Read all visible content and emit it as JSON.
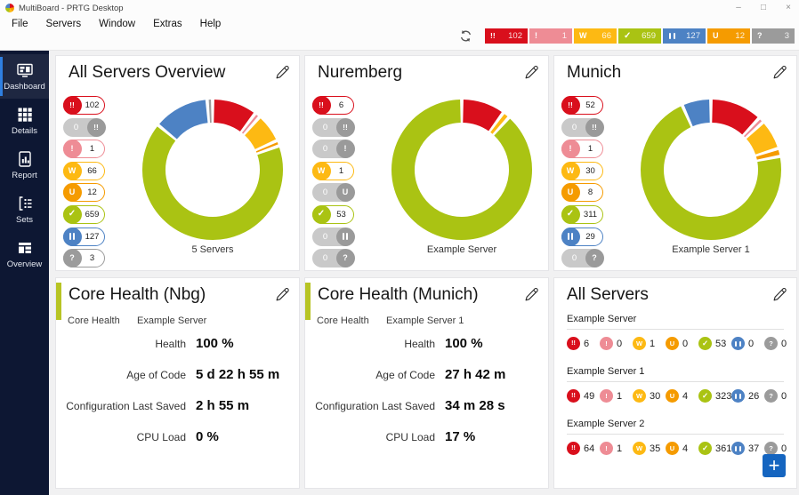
{
  "window": {
    "title": "MultiBoard - PRTG Desktop",
    "controls": [
      {
        "name": "minimize",
        "glyph": "–"
      },
      {
        "name": "maximize",
        "glyph": "□"
      },
      {
        "name": "close",
        "glyph": "×"
      }
    ]
  },
  "menu": {
    "items": [
      "File",
      "Servers",
      "Window",
      "Extras",
      "Help"
    ]
  },
  "colors": {
    "down": "#d90f1c",
    "down_ack": "#9a9a9a",
    "down_part": "#ee8c95",
    "warning": "#fdb913",
    "unusual": "#f59b00",
    "up": "#aac313",
    "paused": "#4d82c4",
    "unknown": "#9b9b9b",
    "zero_pill_bg": "#c9c9c9",
    "zero_pill_knob": "#9a9a9a",
    "add_button": "#1565c0",
    "core_health_stripe": "#b7c424",
    "active_nav_accent": "#2f7fe0",
    "sidebar_bg": "#0d1733"
  },
  "toolbar": {
    "refresh_icon": "refresh-icon",
    "badges": [
      {
        "status": "down",
        "icon": "!!",
        "count": 102
      },
      {
        "status": "down_part",
        "icon": "!",
        "count": 1
      },
      {
        "status": "warning",
        "icon": "W",
        "count": 66
      },
      {
        "status": "up",
        "icon": "check",
        "count": 659
      },
      {
        "status": "paused",
        "icon": "pause",
        "count": 127
      },
      {
        "status": "unusual",
        "icon": "U",
        "count": 12
      },
      {
        "status": "unknown",
        "icon": "?",
        "count": 3
      }
    ]
  },
  "sidebar": {
    "items": [
      {
        "label": "Dashboard",
        "icon": "dashboard-icon",
        "active": true
      },
      {
        "label": "Details",
        "icon": "details-icon",
        "active": false
      },
      {
        "label": "Report",
        "icon": "report-icon",
        "active": false
      },
      {
        "label": "Sets",
        "icon": "sets-icon",
        "active": false
      },
      {
        "label": "Overview",
        "icon": "overview-icon",
        "active": false
      }
    ]
  },
  "cards": {
    "overview": [
      {
        "title": "All Servers Overview",
        "pills": [
          {
            "status": "down",
            "icon": "!!",
            "count": 102
          },
          {
            "status": "down_ack",
            "icon": "!!",
            "count": 0
          },
          {
            "status": "down_part",
            "icon": "!",
            "count": 1
          },
          {
            "status": "warning",
            "icon": "W",
            "count": 66
          },
          {
            "status": "unusual",
            "icon": "U",
            "count": 12
          },
          {
            "status": "up",
            "icon": "check",
            "count": 659
          },
          {
            "status": "paused",
            "icon": "pause",
            "count": 127
          },
          {
            "status": "unknown",
            "icon": "?",
            "count": 3
          }
        ]
      },
      {
        "title": "Nuremberg",
        "pills": [
          {
            "status": "down",
            "icon": "!!",
            "count": 6
          },
          {
            "status": "down_ack",
            "icon": "!!",
            "count": 0
          },
          {
            "status": "down_part",
            "icon": "!",
            "count": 0
          },
          {
            "status": "warning",
            "icon": "W",
            "count": 1
          },
          {
            "status": "unusual",
            "icon": "U",
            "count": 0
          },
          {
            "status": "up",
            "icon": "check",
            "count": 53
          },
          {
            "status": "paused",
            "icon": "pause",
            "count": 0
          },
          {
            "status": "unknown",
            "icon": "?",
            "count": 0
          }
        ]
      },
      {
        "title": "Munich",
        "pills": [
          {
            "status": "down",
            "icon": "!!",
            "count": 52
          },
          {
            "status": "down_ack",
            "icon": "!!",
            "count": 0
          },
          {
            "status": "down_part",
            "icon": "!",
            "count": 1
          },
          {
            "status": "warning",
            "icon": "W",
            "count": 30
          },
          {
            "status": "unusual",
            "icon": "U",
            "count": 8
          },
          {
            "status": "up",
            "icon": "check",
            "count": 311
          },
          {
            "status": "paused",
            "icon": "pause",
            "count": 29
          },
          {
            "status": "unknown",
            "icon": "?",
            "count": 0
          }
        ]
      }
    ],
    "core_health": [
      {
        "title": "Core Health (Nbg)",
        "group": "Core Health",
        "device": "Example Server",
        "rows": [
          {
            "label": "Health",
            "value": "100 %"
          },
          {
            "label": "Age of Code",
            "value": "5 d 22 h 55 m"
          },
          {
            "label": "Configuration Last Saved",
            "value": "2 h 55 m"
          },
          {
            "label": "CPU Load",
            "value": "0 %"
          }
        ]
      },
      {
        "title": "Core Health (Munich)",
        "group": "Core Health",
        "device": "Example Server 1",
        "rows": [
          {
            "label": "Health",
            "value": "100 %"
          },
          {
            "label": "Age of Code",
            "value": "27 h 42 m"
          },
          {
            "label": "Configuration Last Saved",
            "value": "34 m 28 s"
          },
          {
            "label": "CPU Load",
            "value": "17 %"
          }
        ]
      }
    ],
    "all_servers": {
      "title": "All Servers",
      "add_icon": "+",
      "servers": [
        {
          "name": "Example Server",
          "badges": [
            {
              "status": "down",
              "icon": "!!",
              "count": 6
            },
            {
              "status": "down_part",
              "icon": "!",
              "count": 0
            },
            {
              "status": "warning",
              "icon": "W",
              "count": 1
            },
            {
              "status": "unusual",
              "icon": "U",
              "count": 0
            },
            {
              "status": "up",
              "icon": "check",
              "count": 53
            },
            {
              "status": "paused",
              "icon": "pause",
              "count": 0
            },
            {
              "status": "unknown",
              "icon": "?",
              "count": 0
            }
          ]
        },
        {
          "name": "Example Server 1",
          "badges": [
            {
              "status": "down",
              "icon": "!!",
              "count": 49
            },
            {
              "status": "down_part",
              "icon": "!",
              "count": 1
            },
            {
              "status": "warning",
              "icon": "W",
              "count": 30
            },
            {
              "status": "unusual",
              "icon": "U",
              "count": 4
            },
            {
              "status": "up",
              "icon": "check",
              "count": 323
            },
            {
              "status": "paused",
              "icon": "pause",
              "count": 26
            },
            {
              "status": "unknown",
              "icon": "?",
              "count": 0
            }
          ]
        },
        {
          "name": "Example Server 2",
          "badges": [
            {
              "status": "down",
              "icon": "!!",
              "count": 64
            },
            {
              "status": "down_part",
              "icon": "!",
              "count": 1
            },
            {
              "status": "warning",
              "icon": "W",
              "count": 35
            },
            {
              "status": "unusual",
              "icon": "U",
              "count": 4
            },
            {
              "status": "up",
              "icon": "check",
              "count": 361
            },
            {
              "status": "paused",
              "icon": "pause",
              "count": 37
            },
            {
              "status": "unknown",
              "icon": "?",
              "count": 0
            }
          ]
        }
      ]
    }
  },
  "chart_data": [
    {
      "type": "donut",
      "title": "All Servers Overview",
      "caption": "5 Servers",
      "segments": [
        {
          "status": "down",
          "value": 102
        },
        {
          "status": "down_part",
          "value": 1
        },
        {
          "status": "warning",
          "value": 66
        },
        {
          "status": "unusual",
          "value": 12
        },
        {
          "status": "up",
          "value": 659
        },
        {
          "status": "paused",
          "value": 127
        },
        {
          "status": "unknown",
          "value": 3
        }
      ]
    },
    {
      "type": "donut",
      "title": "Nuremberg",
      "caption": "Example Server",
      "segments": [
        {
          "status": "down",
          "value": 6
        },
        {
          "status": "warning",
          "value": 1
        },
        {
          "status": "up",
          "value": 53
        }
      ]
    },
    {
      "type": "donut",
      "title": "Munich",
      "caption": "Example Server 1",
      "segments": [
        {
          "status": "down",
          "value": 52
        },
        {
          "status": "down_part",
          "value": 1
        },
        {
          "status": "warning",
          "value": 30
        },
        {
          "status": "unusual",
          "value": 8
        },
        {
          "status": "up",
          "value": 311
        },
        {
          "status": "paused",
          "value": 29
        }
      ]
    }
  ]
}
